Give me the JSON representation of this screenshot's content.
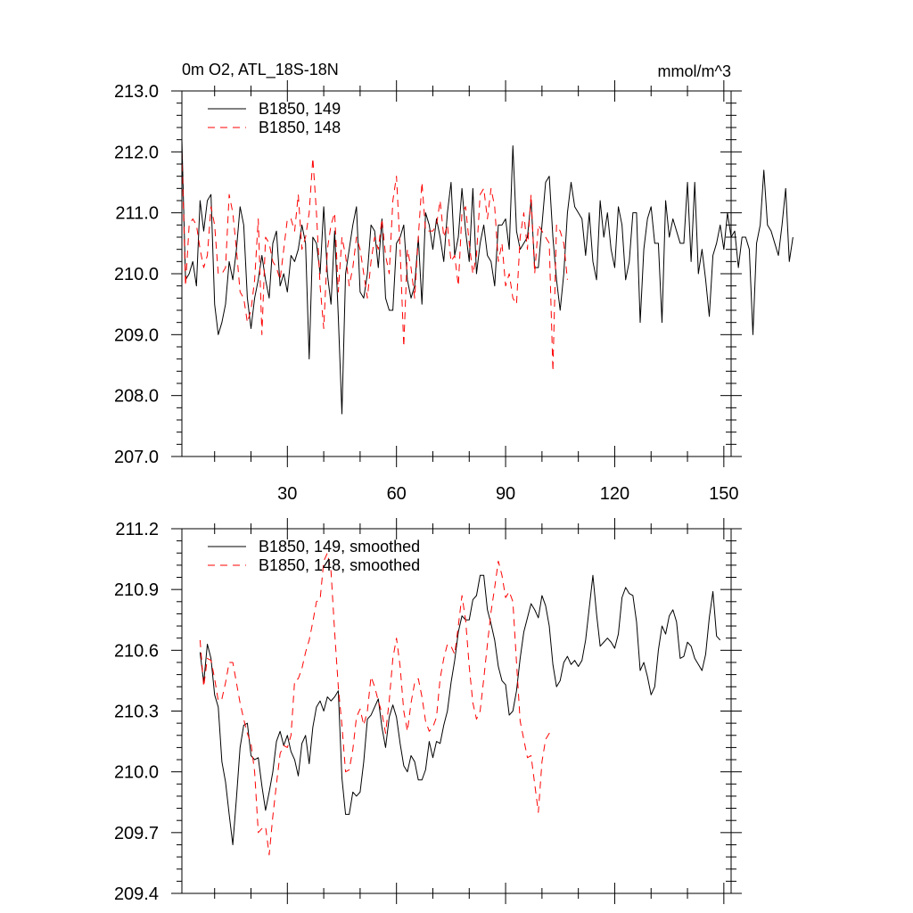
{
  "chart_data": [
    {
      "type": "line",
      "title": "0m O2, ATL_18S-18N",
      "units_label": "mmol/m^3",
      "xlim": [
        1,
        152
      ],
      "ylim": [
        207.0,
        213.0
      ],
      "x_ticks": [
        30,
        60,
        90,
        120,
        150
      ],
      "x_tick_labels": [
        "30",
        "60",
        "90",
        "120",
        "150"
      ],
      "y_ticks": [
        207.0,
        208.0,
        209.0,
        210.0,
        211.0,
        212.0,
        213.0
      ],
      "y_tick_labels": [
        "207.0",
        "208.0",
        "209.0",
        "210.0",
        "211.0",
        "212.0",
        "213.0"
      ],
      "legend_position": "top-left",
      "series": [
        {
          "name": "B1850, 149",
          "color": "#000000",
          "dash": "solid",
          "x_start": 1,
          "values": [
            212.2,
            209.9,
            210.0,
            210.2,
            209.8,
            211.2,
            210.7,
            211.2,
            211.3,
            209.5,
            209.0,
            209.2,
            209.5,
            210.2,
            209.9,
            210.4,
            211.1,
            210.8,
            209.6,
            209.1,
            209.6,
            209.9,
            210.3,
            209.9,
            209.6,
            210.5,
            210.7,
            209.8,
            210.0,
            209.7,
            210.3,
            210.2,
            210.4,
            210.8,
            210.5,
            208.6,
            210.6,
            210.5,
            210.0,
            211.1,
            210.0,
            209.5,
            210.7,
            209.3,
            207.7,
            210.0,
            210.4,
            210.8,
            211.1,
            209.7,
            209.6,
            210.0,
            210.8,
            210.7,
            210.1,
            210.9,
            209.6,
            209.4,
            209.4,
            210.5,
            210.6,
            210.8,
            209.9,
            209.6,
            209.8,
            210.6,
            209.5,
            211.0,
            210.8,
            210.4,
            210.9,
            210.6,
            210.2,
            211.0,
            211.5,
            210.3,
            210.6,
            211.4,
            210.7,
            210.2,
            211.4,
            210.0,
            210.5,
            210.8,
            210.3,
            210.2,
            209.8,
            210.8,
            210.8,
            210.9,
            210.4,
            212.1,
            210.7,
            210.4,
            210.5,
            210.6,
            211.2,
            210.1,
            210.1,
            210.8,
            211.5,
            211.6,
            210.6,
            209.9,
            209.4,
            210.0,
            211.0,
            211.5,
            211.1,
            211.0,
            210.9,
            210.3,
            211.0,
            210.2,
            209.9,
            211.2,
            210.6,
            211.0,
            210.4,
            210.1,
            211.1,
            210.8,
            209.9,
            210.2,
            211.0,
            211.0,
            209.2,
            210.4,
            210.9,
            211.1,
            210.5,
            210.5,
            209.2,
            211.2,
            210.6,
            210.9,
            210.7,
            210.5,
            210.5,
            211.5,
            210.2,
            211.5,
            210.0,
            210.4,
            209.9,
            209.3,
            210.3,
            210.5,
            210.8,
            210.4,
            211.0,
            210.6,
            210.7,
            210.1,
            210.6,
            210.6,
            210.4,
            209.0,
            210.5,
            210.8,
            211.7,
            210.8,
            210.7,
            210.5,
            210.3,
            210.8,
            211.4,
            210.2,
            210.6
          ]
        },
        {
          "name": "B1850, 148",
          "color": "#ff0000",
          "dash": "dashed",
          "x_start": 1,
          "values": [
            212.0,
            209.8,
            210.8,
            210.9,
            210.8,
            210.4,
            210.1,
            210.3,
            211.1,
            210.8,
            210.0,
            210.0,
            210.1,
            211.3,
            211.0,
            210.4,
            209.7,
            209.6,
            209.2,
            209.4,
            209.9,
            210.9,
            209.0,
            210.6,
            210.5,
            210.2,
            210.1,
            209.9,
            210.4,
            210.9,
            210.9,
            210.7,
            211.3,
            210.4,
            210.6,
            211.0,
            211.9,
            211.0,
            209.8,
            209.1,
            210.4,
            210.8,
            211.0,
            209.7,
            210.6,
            210.3,
            209.8,
            210.1,
            210.6,
            210.4,
            210.0,
            209.6,
            210.2,
            210.6,
            210.4,
            210.9,
            210.3,
            210.0,
            211.2,
            211.6,
            210.4,
            208.8,
            210.4,
            210.1,
            209.6,
            210.6,
            211.5,
            210.7,
            210.7,
            210.7,
            210.8,
            211.2,
            210.6,
            210.8,
            210.2,
            210.3,
            209.8,
            211.0,
            211.1,
            210.5,
            210.0,
            210.3,
            211.3,
            211.4,
            210.9,
            211.4,
            211.1,
            210.2,
            210.5,
            209.8,
            210.0,
            209.6,
            209.5,
            210.6,
            211.0,
            210.4,
            211.3,
            210.0,
            210.8,
            210.7,
            210.6,
            210.5,
            208.4,
            210.8,
            210.7,
            210.5,
            209.9
          ]
        }
      ]
    },
    {
      "type": "line",
      "xlim": [
        1,
        152
      ],
      "ylim": [
        209.4,
        211.2
      ],
      "x_ticks": [
        30,
        60,
        90,
        120,
        150
      ],
      "y_ticks": [
        209.4,
        209.7,
        210.0,
        210.3,
        210.6,
        210.9,
        211.2
      ],
      "y_tick_labels": [
        "209.4",
        "209.7",
        "210.0",
        "210.3",
        "210.6",
        "210.9",
        "211.2"
      ],
      "legend_position": "top-left",
      "series": [
        {
          "name": "B1850, 149, smoothed",
          "color": "#000000",
          "dash": "solid",
          "x_start": 6,
          "values": [
            210.59,
            210.44,
            210.63,
            210.56,
            210.38,
            210.32,
            210.05,
            209.95,
            209.79,
            209.64,
            209.87,
            210.12,
            210.23,
            210.24,
            210.08,
            210.06,
            210.07,
            209.93,
            209.81,
            209.9,
            210.0,
            210.15,
            210.2,
            210.13,
            210.18,
            210.1,
            210.06,
            209.98,
            210.14,
            210.18,
            210.04,
            210.22,
            210.32,
            210.35,
            210.3,
            210.37,
            210.35,
            210.37,
            210.4,
            209.97,
            209.79,
            209.79,
            209.9,
            209.88,
            209.9,
            210.05,
            210.26,
            210.28,
            210.32,
            210.36,
            210.22,
            210.12,
            210.27,
            210.33,
            210.27,
            210.14,
            210.03,
            210.0,
            210.08,
            210.05,
            209.96,
            209.96,
            210.01,
            210.15,
            210.07,
            210.15,
            210.14,
            210.23,
            210.3,
            210.44,
            210.55,
            210.69,
            210.77,
            210.75,
            210.75,
            210.85,
            210.87,
            210.97,
            210.97,
            210.8,
            210.73,
            210.65,
            210.52,
            210.45,
            210.43,
            210.28,
            210.3,
            210.4,
            210.56,
            210.69,
            210.76,
            210.83,
            210.8,
            210.76,
            210.87,
            210.82,
            210.72,
            210.53,
            210.42,
            210.45,
            210.54,
            210.57,
            210.53,
            210.55,
            210.52,
            210.55,
            210.65,
            210.81,
            210.97,
            210.78,
            210.62,
            210.64,
            210.66,
            210.64,
            210.61,
            210.68,
            210.86,
            210.91,
            210.88,
            210.87,
            210.74,
            210.5,
            210.54,
            210.47,
            210.38,
            210.42,
            210.6,
            210.72,
            210.68,
            210.77,
            210.8,
            210.74,
            210.56,
            210.57,
            210.64,
            210.62,
            210.56,
            210.53,
            210.5,
            210.58,
            210.76,
            210.89,
            210.67,
            210.65
          ]
        },
        {
          "name": "B1850, 148, smoothed",
          "color": "#ff0000",
          "dash": "dashed",
          "x_start": 6,
          "values": [
            210.65,
            210.42,
            210.56,
            210.55,
            210.46,
            210.35,
            210.36,
            210.44,
            210.54,
            210.54,
            210.44,
            210.34,
            210.26,
            210.19,
            210.14,
            210.0,
            209.7,
            209.72,
            209.73,
            209.59,
            209.78,
            209.94,
            210.09,
            210.13,
            210.12,
            210.18,
            210.45,
            210.46,
            210.51,
            210.59,
            210.65,
            210.74,
            210.84,
            210.85,
            211.04,
            211.08,
            210.99,
            210.69,
            210.42,
            210.23,
            210.0,
            210.01,
            210.11,
            210.27,
            210.31,
            210.23,
            210.3,
            210.47,
            210.42,
            210.35,
            210.29,
            210.19,
            210.35,
            210.56,
            210.66,
            210.52,
            210.3,
            210.2,
            210.34,
            210.44,
            210.46,
            210.37,
            210.25,
            210.2,
            210.22,
            210.27,
            210.46,
            210.56,
            210.63,
            210.62,
            210.58,
            210.72,
            210.87,
            210.75,
            210.52,
            210.34,
            210.26,
            210.3,
            210.46,
            210.63,
            210.79,
            210.91,
            211.04,
            210.97,
            210.86,
            210.89,
            210.84,
            210.54,
            210.25,
            210.16,
            210.07,
            210.08,
            209.94,
            209.8,
            210.05,
            210.16,
            210.19,
            210.18
          ]
        }
      ]
    }
  ]
}
